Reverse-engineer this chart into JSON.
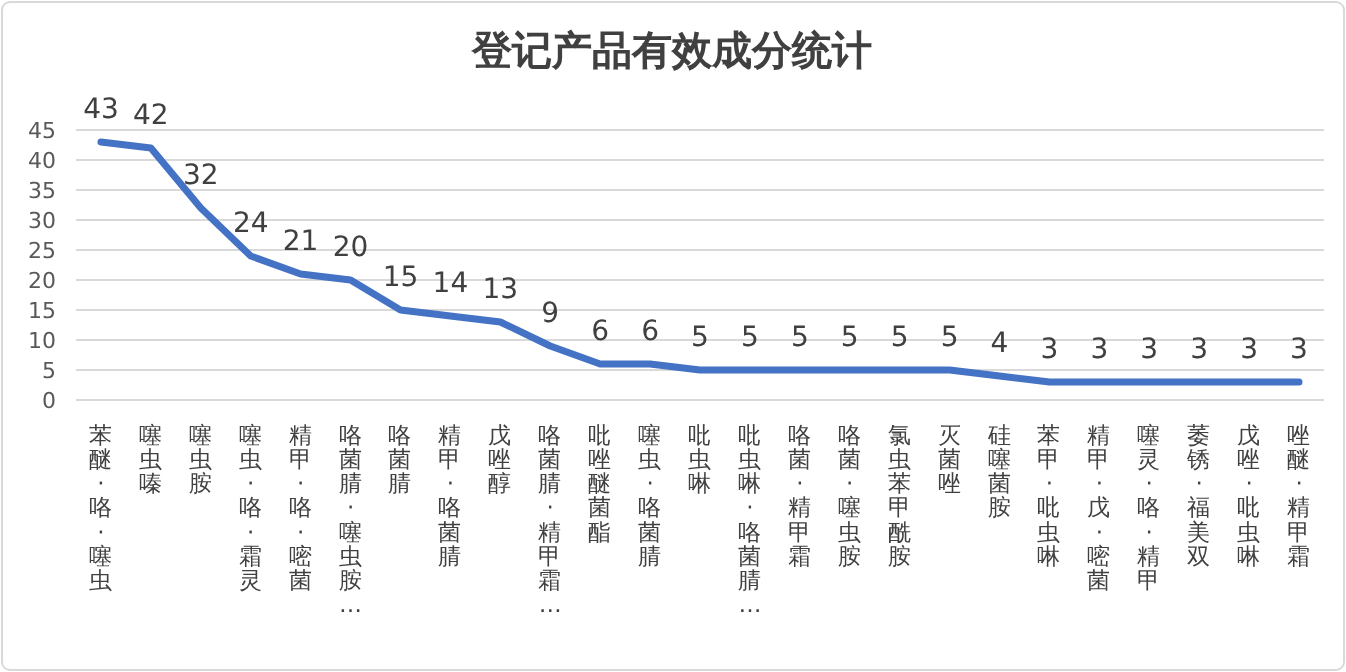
{
  "chart_data": {
    "type": "line",
    "title": "登记产品有效成分统计",
    "categories": [
      "苯醚·咯·噻虫",
      "噻虫嗪",
      "噻虫胺",
      "噻虫·咯·霜灵",
      "精甲·咯·嘧菌",
      "咯菌腈·噻虫胺…",
      "咯菌腈",
      "精甲·咯菌腈",
      "戊唑醇",
      "咯菌腈·精甲霜…",
      "吡唑醚菌酯",
      "噻虫·咯菌腈",
      "吡虫啉",
      "吡虫啉·咯菌腈…",
      "咯菌·精甲霜",
      "咯菌·噻虫胺",
      "氯虫苯甲酰胺",
      "灭菌唑",
      "硅噻菌胺",
      "苯甲·吡虫啉",
      "精甲·戊·嘧菌",
      "噻灵·咯·精甲",
      "萎锈·福美双",
      "戊唑·吡虫啉",
      "唑醚·精甲霜"
    ],
    "values": [
      43,
      42,
      32,
      24,
      21,
      20,
      15,
      14,
      13,
      9,
      6,
      6,
      5,
      5,
      5,
      5,
      5,
      5,
      4,
      3,
      3,
      3,
      3,
      3,
      3
    ],
    "color": "#4472c4",
    "ylim": [
      0,
      45
    ],
    "yticks": [
      0,
      5,
      10,
      15,
      20,
      25,
      30,
      35,
      40,
      45
    ],
    "grid": "y",
    "data_labels": true,
    "marker": "none",
    "line_style": "solid"
  }
}
